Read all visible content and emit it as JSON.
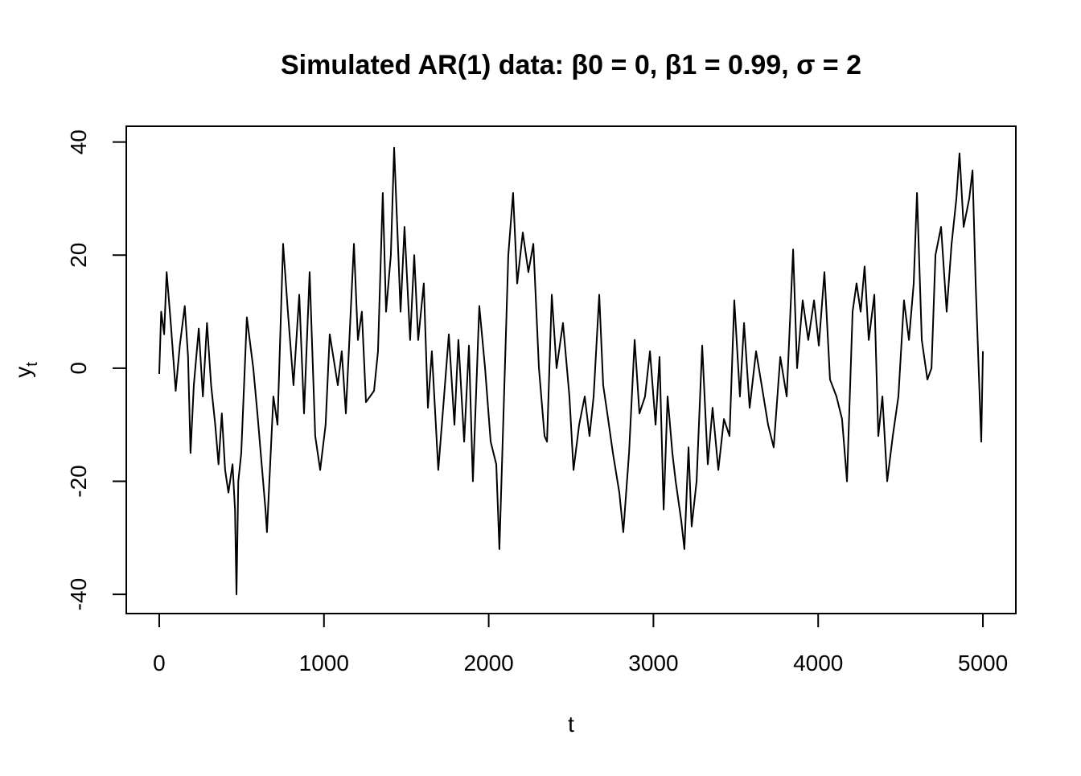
{
  "chart_data": {
    "type": "line",
    "title": "Simulated AR(1) data: β0 = 0, β1 = 0.99, σ = 2",
    "xlabel": "t",
    "ylabel": "y",
    "ylabel_subscript": "t",
    "xlim": [
      -200,
      5200
    ],
    "ylim": [
      -43.4,
      42.8
    ],
    "xticks": [
      0,
      1000,
      2000,
      3000,
      4000,
      5000
    ],
    "yticks": [
      -40,
      -20,
      0,
      20,
      40
    ],
    "grid": false,
    "series": [
      {
        "color": "#000000",
        "x": [
          0,
          12,
          30,
          45,
          70,
          100,
          125,
          155,
          175,
          190,
          210,
          240,
          265,
          290,
          315,
          340,
          360,
          380,
          400,
          420,
          445,
          460,
          469,
          480,
          498,
          532,
          571,
          596,
          645,
          654,
          693,
          718,
          752,
          781,
          815,
          850,
          879,
          913,
          947,
          977,
          1010,
          1035,
          1084,
          1108,
          1133,
          1182,
          1206,
          1230,
          1255,
          1304,
          1328,
          1357,
          1377,
          1406,
          1426,
          1445,
          1465,
          1489,
          1523,
          1548,
          1572,
          1606,
          1631,
          1655,
          1694,
          1729,
          1758,
          1792,
          1816,
          1851,
          1880,
          1904,
          1943,
          1978,
          2012,
          2046,
          2065,
          2090,
          2119,
          2148,
          2173,
          2207,
          2241,
          2271,
          2305,
          2339,
          2354,
          2383,
          2412,
          2451,
          2490,
          2515,
          2549,
          2583,
          2612,
          2637,
          2671,
          2695,
          2720,
          2754,
          2793,
          2817,
          2852,
          2886,
          2915,
          2949,
          2979,
          3013,
          3037,
          3062,
          3086,
          3115,
          3135,
          3169,
          3188,
          3213,
          3232,
          3262,
          3296,
          3330,
          3359,
          3394,
          3428,
          3462,
          3491,
          3525,
          3550,
          3584,
          3623,
          3657,
          3696,
          3730,
          3770,
          3809,
          3848,
          3872,
          3906,
          3940,
          3975,
          4004,
          4038,
          4072,
          4111,
          4145,
          4175,
          4209,
          4233,
          4258,
          4282,
          4307,
          4341,
          4365,
          4390,
          4419,
          4453,
          4487,
          4521,
          4551,
          4580,
          4600,
          4629,
          4663,
          4688,
          4712,
          4746,
          4780,
          4810,
          4839,
          4858,
          4883,
          4917,
          4937,
          4956,
          4990,
          5000
        ],
        "values": [
          -1,
          10,
          6,
          17,
          8,
          -4,
          4,
          11,
          2,
          -15,
          -3,
          7,
          -5,
          8,
          -3,
          -10,
          -17,
          -8,
          -18,
          -22,
          -17,
          -25,
          -40,
          -20,
          -15,
          9,
          0,
          -8,
          -25,
          -29,
          -5,
          -10,
          22,
          10,
          -3,
          13,
          -8,
          17,
          -12,
          -18,
          -10,
          6,
          -3,
          3,
          -8,
          22,
          5,
          10,
          -6,
          -4,
          3,
          31,
          10,
          20,
          39,
          25,
          10,
          25,
          5,
          20,
          5,
          15,
          -7,
          3,
          -18,
          -5,
          6,
          -10,
          5,
          -13,
          4,
          -20,
          11,
          0,
          -13,
          -17,
          -32,
          -8,
          20,
          31,
          15,
          24,
          17,
          22,
          0,
          -12,
          -13,
          13,
          0,
          8,
          -5,
          -18,
          -10,
          -5,
          -12,
          -5,
          13,
          -3,
          -8,
          -15,
          -22,
          -29,
          -15,
          5,
          -8,
          -5,
          3,
          -10,
          2,
          -25,
          -5,
          -15,
          -20,
          -27,
          -32,
          -14,
          -28,
          -20,
          4,
          -17,
          -7,
          -18,
          -9,
          -12,
          12,
          -5,
          8,
          -7,
          3,
          -3,
          -10,
          -14,
          2,
          -5,
          21,
          0,
          12,
          5,
          12,
          4,
          17,
          -2,
          -5,
          -9,
          -20,
          10,
          15,
          10,
          18,
          5,
          13,
          -12,
          -5,
          -20,
          -12,
          -5,
          12,
          5,
          15,
          31,
          5,
          -2,
          0,
          20,
          25,
          10,
          22,
          30,
          38,
          25,
          30,
          35,
          15,
          -13,
          3
        ]
      }
    ]
  }
}
